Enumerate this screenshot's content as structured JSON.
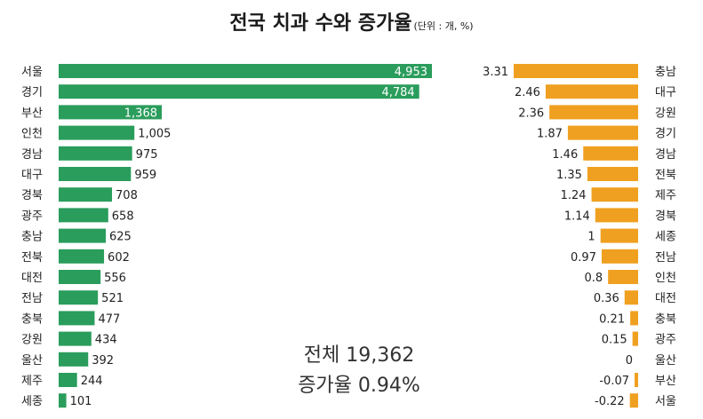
{
  "title": "전국 치과 수와 증가율",
  "unit_note": "(단위 : 개, %)",
  "colors": {
    "left_bar": "#2a9d5c",
    "right_bar": "#f0a020"
  },
  "chart_data": [
    {
      "type": "bar",
      "orientation": "horizontal",
      "categories": [
        "서울",
        "경기",
        "부산",
        "인천",
        "경남",
        "대구",
        "경북",
        "광주",
        "충남",
        "전북",
        "대전",
        "전남",
        "충북",
        "강원",
        "울산",
        "제주",
        "세종"
      ],
      "values": [
        4953,
        4784,
        1368,
        1005,
        975,
        959,
        708,
        658,
        625,
        602,
        556,
        521,
        477,
        434,
        392,
        244,
        101
      ],
      "value_labels": [
        "4,953",
        "4,784",
        "1,368",
        "1,005",
        "975",
        "959",
        "708",
        "658",
        "625",
        "602",
        "556",
        "521",
        "477",
        "434",
        "392",
        "244",
        "101"
      ]
    },
    {
      "type": "bar",
      "orientation": "horizontal",
      "categories": [
        "충남",
        "대구",
        "강원",
        "경기",
        "경남",
        "전북",
        "제주",
        "경북",
        "세종",
        "전남",
        "인천",
        "대전",
        "충북",
        "광주",
        "울산",
        "부산",
        "서울"
      ],
      "values": [
        3.31,
        2.46,
        2.36,
        1.87,
        1.46,
        1.35,
        1.24,
        1.14,
        1,
        0.97,
        0.8,
        0.36,
        0.21,
        0.15,
        0,
        -0.07,
        -0.22
      ],
      "value_labels": [
        "3.31",
        "2.46",
        "2.36",
        "1.87",
        "1.46",
        "1.35",
        "1.24",
        "1.14",
        "1",
        "0.97",
        "0.8",
        "0.36",
        "0.21",
        "0.15",
        "0",
        "-0.07",
        "-0.22"
      ]
    }
  ],
  "summary": {
    "total": "전체 19,362",
    "rate": "증가율 0.94%"
  }
}
